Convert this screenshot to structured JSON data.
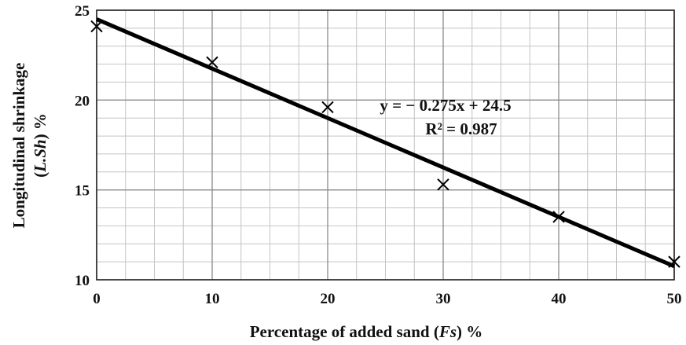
{
  "chart_data": {
    "type": "scatter",
    "x": [
      0,
      10,
      20,
      30,
      40,
      50
    ],
    "y": [
      24.1,
      22.1,
      19.6,
      15.3,
      13.5,
      11.0
    ],
    "xlim": [
      0,
      50
    ],
    "ylim": [
      10,
      25
    ],
    "x_ticks": [
      "0",
      "10",
      "20",
      "30",
      "40",
      "50"
    ],
    "y_ticks": [
      "10",
      "15",
      "20",
      "25"
    ],
    "x_minor_step": 2.5,
    "y_minor_step": 1,
    "grid": true,
    "marker": "x",
    "trendline": {
      "type": "linear",
      "slope": -0.275,
      "intercept": 24.5
    },
    "xlabel": {
      "main": "Percentage of added sand (",
      "italic": "Fs",
      "tail": ") %"
    },
    "ylabel": {
      "line1": "Longitudinal shrinkage",
      "line2": {
        "open": "(",
        "italic": "L.Sh",
        "close": ") %"
      }
    },
    "annotation": {
      "equation": "y = − 0.275x + 24.5",
      "r2": "R² = 0.987"
    }
  }
}
